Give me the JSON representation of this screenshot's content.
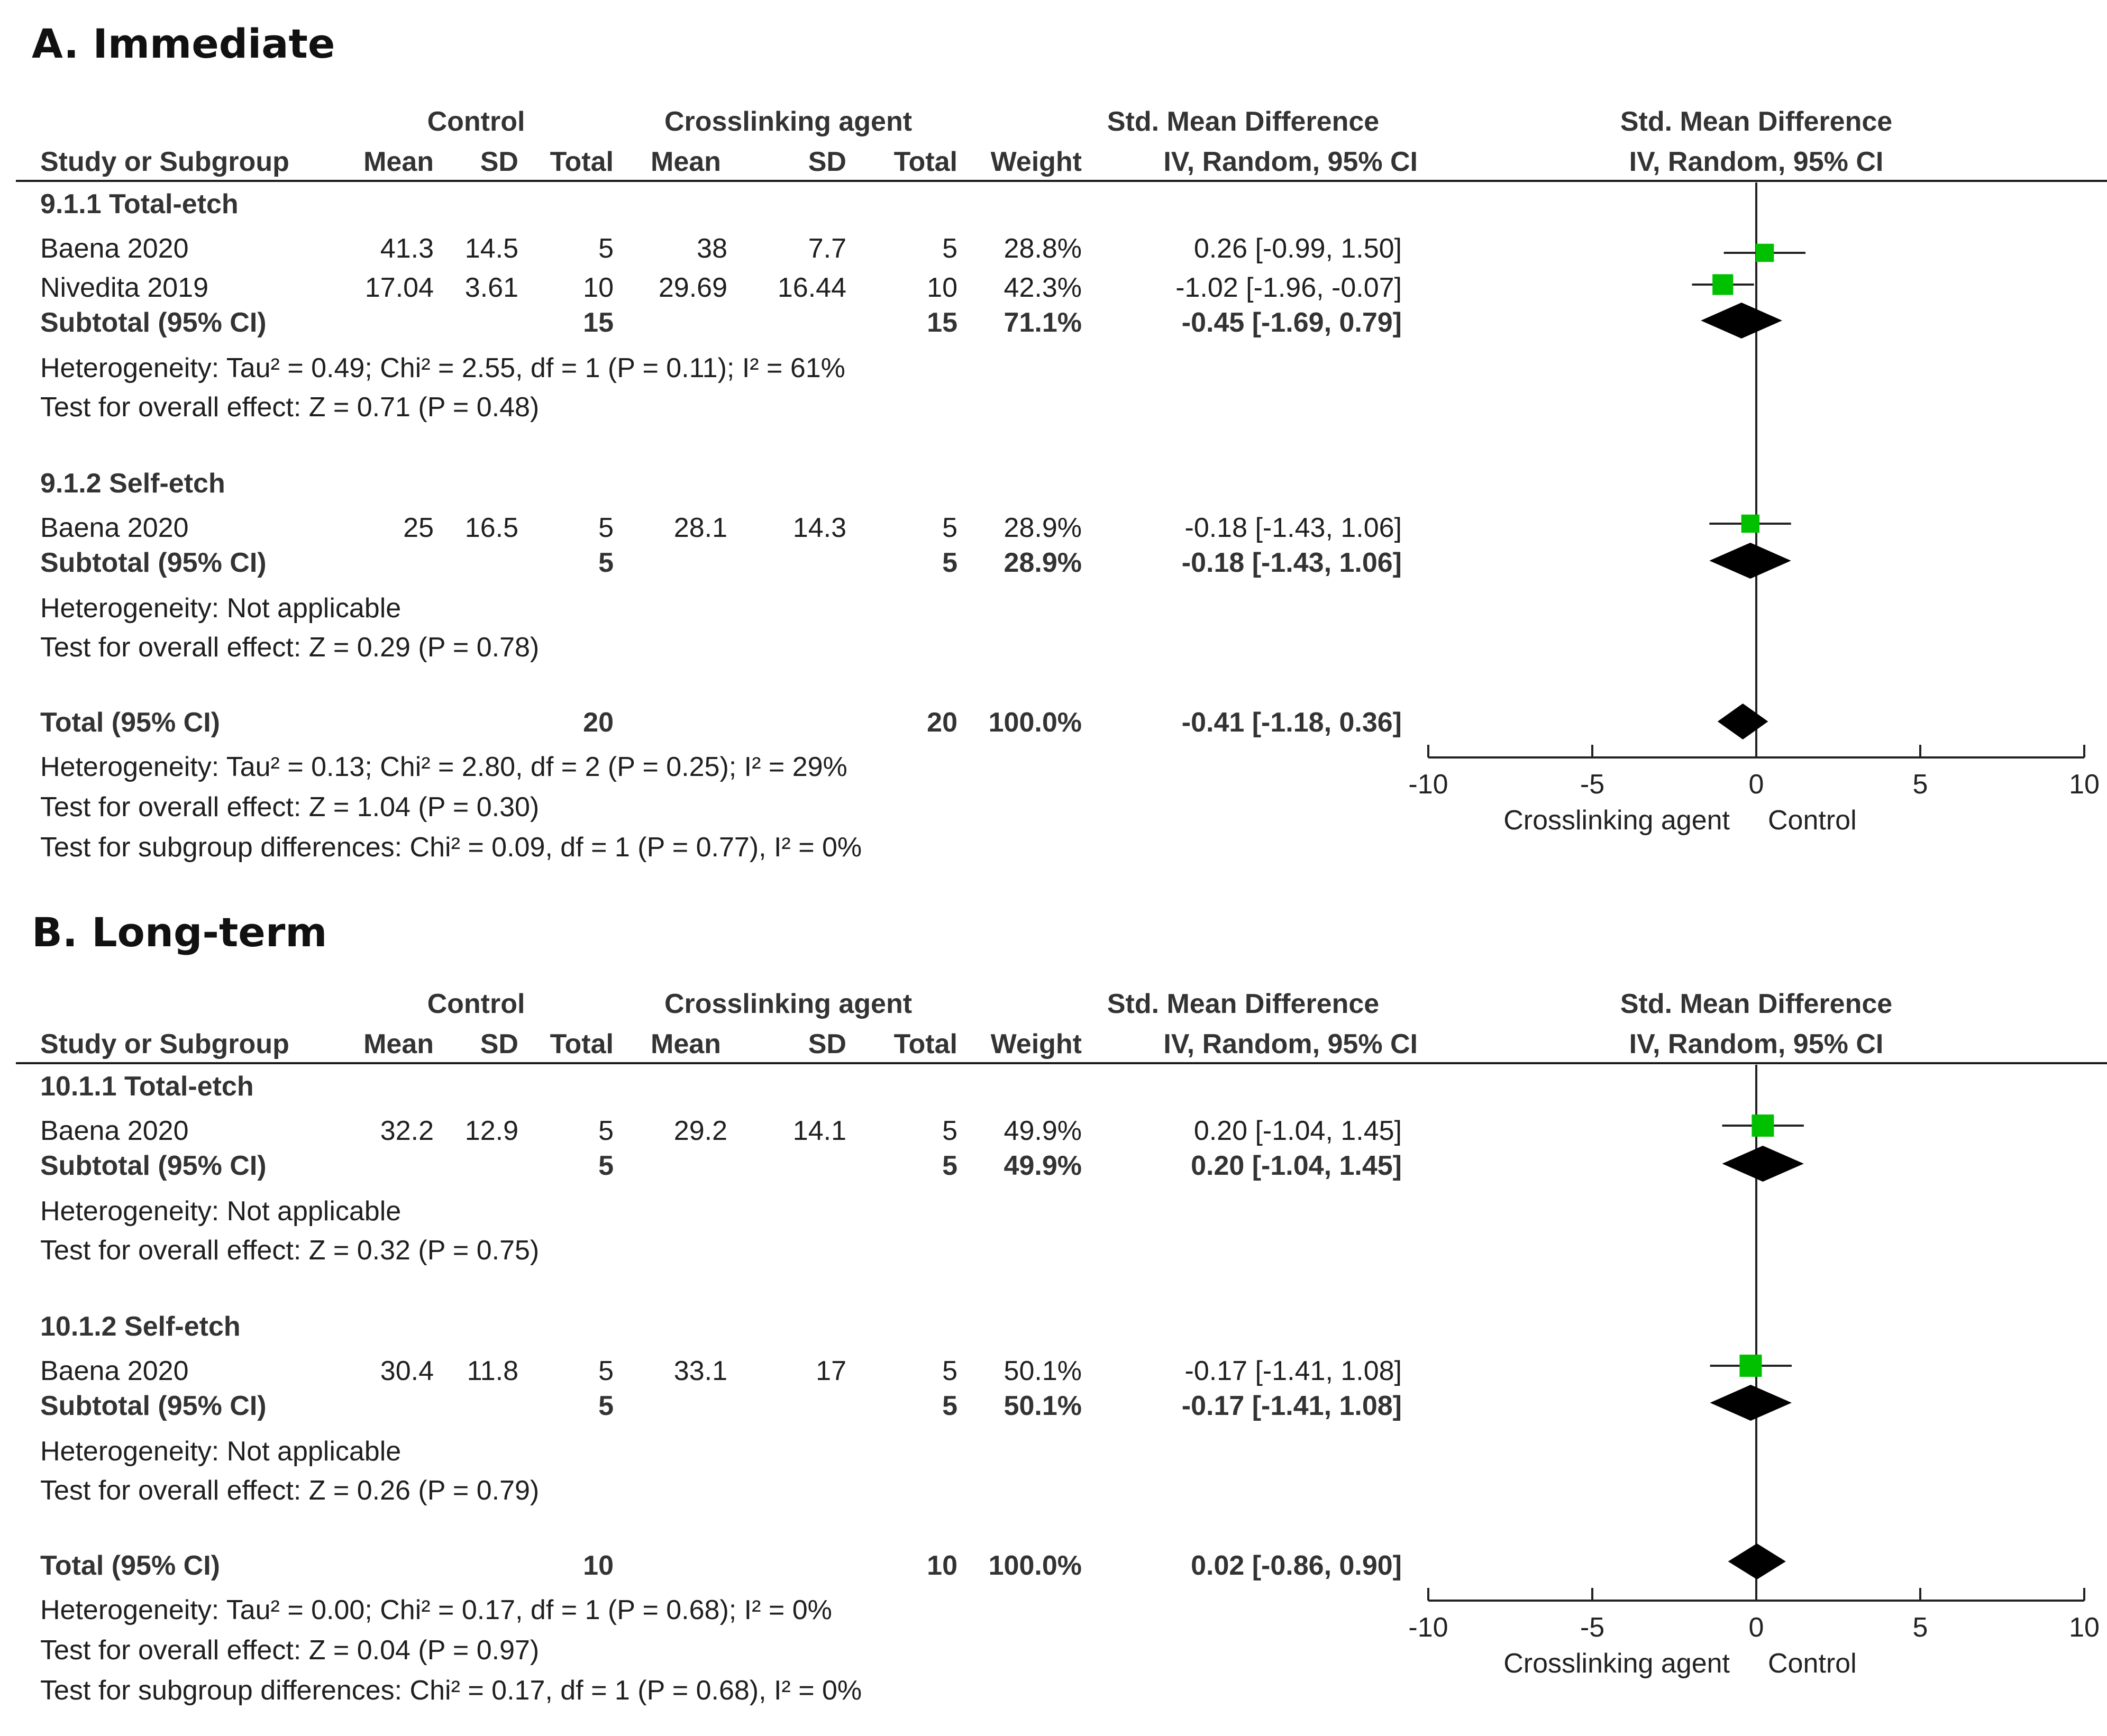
{
  "columns": {
    "study": "Study or Subgroup",
    "control": "Control",
    "treatment": "Crosslinking agent",
    "mean": "Mean",
    "sd": "SD",
    "total": "Total",
    "weight": "Weight",
    "smd_title": "Std. Mean Difference",
    "smd_method": "IV, Random, 95% CI"
  },
  "panels": [
    {
      "title": "A. Immediate",
      "subgroups": [
        {
          "name": "9.1.1 Total-etch",
          "studies": [
            {
              "name": "Baena 2020",
              "c_mean": "41.3",
              "c_sd": "14.5",
              "c_total": "5",
              "t_mean": "38",
              "t_sd": "7.7",
              "t_total": "5",
              "weight": "28.8%",
              "ci": "0.26 [-0.99, 1.50]"
            },
            {
              "name": "Nivedita 2019",
              "c_mean": "17.04",
              "c_sd": "3.61",
              "c_total": "10",
              "t_mean": "29.69",
              "t_sd": "16.44",
              "t_total": "10",
              "weight": "42.3%",
              "ci": "-1.02 [-1.96, -0.07]"
            }
          ],
          "subtotal": {
            "label": "Subtotal (95% CI)",
            "c_total": "15",
            "t_total": "15",
            "weight": "71.1%",
            "ci": "-0.45 [-1.69, 0.79]"
          },
          "heterogeneity": "Heterogeneity: Tau² = 0.49; Chi² = 2.55, df = 1 (P = 0.11); I² = 61%",
          "overall": "Test for overall effect: Z = 0.71 (P = 0.48)"
        },
        {
          "name": "9.1.2 Self-etch",
          "studies": [
            {
              "name": "Baena 2020",
              "c_mean": "25",
              "c_sd": "16.5",
              "c_total": "5",
              "t_mean": "28.1",
              "t_sd": "14.3",
              "t_total": "5",
              "weight": "28.9%",
              "ci": "-0.18 [-1.43, 1.06]"
            }
          ],
          "subtotal": {
            "label": "Subtotal (95% CI)",
            "c_total": "5",
            "t_total": "5",
            "weight": "28.9%",
            "ci": "-0.18 [-1.43, 1.06]"
          },
          "heterogeneity": "Heterogeneity: Not applicable",
          "overall": "Test for overall effect: Z = 0.29 (P = 0.78)"
        }
      ],
      "total": {
        "label": "Total (95% CI)",
        "c_total": "20",
        "t_total": "20",
        "weight": "100.0%",
        "ci": "-0.41 [-1.18, 0.36]"
      },
      "total_heterogeneity": "Heterogeneity: Tau² = 0.13; Chi² = 2.80, df = 2 (P = 0.25); I² = 29%",
      "total_overall": "Test for overall effect: Z = 1.04 (P = 0.30)",
      "subgroup_diff": "Test for subgroup differences: Chi² = 0.09, df = 1 (P = 0.77), I² = 0%"
    },
    {
      "title": "B. Long-term",
      "subgroups": [
        {
          "name": "10.1.1 Total-etch",
          "studies": [
            {
              "name": "Baena 2020",
              "c_mean": "32.2",
              "c_sd": "12.9",
              "c_total": "5",
              "t_mean": "29.2",
              "t_sd": "14.1",
              "t_total": "5",
              "weight": "49.9%",
              "ci": "0.20 [-1.04, 1.45]"
            }
          ],
          "subtotal": {
            "label": "Subtotal (95% CI)",
            "c_total": "5",
            "t_total": "5",
            "weight": "49.9%",
            "ci": "0.20 [-1.04, 1.45]"
          },
          "heterogeneity": "Heterogeneity: Not applicable",
          "overall": "Test for overall effect: Z = 0.32 (P = 0.75)"
        },
        {
          "name": "10.1.2 Self-etch",
          "studies": [
            {
              "name": "Baena 2020",
              "c_mean": "30.4",
              "c_sd": "11.8",
              "c_total": "5",
              "t_mean": "33.1",
              "t_sd": "17",
              "t_total": "5",
              "weight": "50.1%",
              "ci": "-0.17 [-1.41, 1.08]"
            }
          ],
          "subtotal": {
            "label": "Subtotal (95% CI)",
            "c_total": "5",
            "t_total": "5",
            "weight": "50.1%",
            "ci": "-0.17 [-1.41, 1.08]"
          },
          "heterogeneity": "Heterogeneity: Not applicable",
          "overall": "Test for overall effect: Z = 0.26 (P = 0.79)"
        }
      ],
      "total": {
        "label": "Total (95% CI)",
        "c_total": "10",
        "t_total": "10",
        "weight": "100.0%",
        "ci": "0.02 [-0.86, 0.90]"
      },
      "total_heterogeneity": "Heterogeneity: Tau² = 0.00; Chi² = 0.17, df = 1 (P = 0.68); I² = 0%",
      "total_overall": "Test for overall effect: Z = 0.04 (P = 0.97)",
      "subgroup_diff": "Test for subgroup differences: Chi² = 0.17, df = 1 (P = 0.68), I² = 0%"
    }
  ],
  "chart_data": [
    {
      "type": "forest",
      "title": "A. Immediate",
      "xlim": [
        -10,
        10
      ],
      "ticks": [
        "-10",
        "-5",
        "0",
        "5",
        "10"
      ],
      "label_left": "Crosslinking agent",
      "label_right": "Control",
      "studies": [
        {
          "label": "Baena 2020",
          "smd": 0.26,
          "lo": -0.99,
          "hi": 1.5,
          "weight": 28.8
        },
        {
          "label": "Nivedita 2019",
          "smd": -1.02,
          "lo": -1.96,
          "hi": -0.07,
          "weight": 42.3
        },
        {
          "label": "Baena 2020",
          "smd": -0.18,
          "lo": -1.43,
          "hi": 1.06,
          "weight": 28.9
        }
      ],
      "diamonds": [
        {
          "label": "Subtotal 9.1.1",
          "smd": -0.45,
          "lo": -1.69,
          "hi": 0.79
        },
        {
          "label": "Subtotal 9.1.2",
          "smd": -0.18,
          "lo": -1.43,
          "hi": 1.06
        },
        {
          "label": "Total",
          "smd": -0.41,
          "lo": -1.18,
          "hi": 0.36
        }
      ],
      "marker_color": "#00c000"
    },
    {
      "type": "forest",
      "title": "B. Long-term",
      "xlim": [
        -10,
        10
      ],
      "ticks": [
        "-10",
        "-5",
        "0",
        "5",
        "10"
      ],
      "label_left": "Crosslinking agent",
      "label_right": "Control",
      "studies": [
        {
          "label": "Baena 2020",
          "smd": 0.2,
          "lo": -1.04,
          "hi": 1.45,
          "weight": 49.9
        },
        {
          "label": "Baena 2020",
          "smd": -0.17,
          "lo": -1.41,
          "hi": 1.08,
          "weight": 50.1
        }
      ],
      "diamonds": [
        {
          "label": "Subtotal 10.1.1",
          "smd": 0.2,
          "lo": -1.04,
          "hi": 1.45
        },
        {
          "label": "Subtotal 10.1.2",
          "smd": -0.17,
          "lo": -1.41,
          "hi": 1.08
        },
        {
          "label": "Total",
          "smd": 0.02,
          "lo": -0.86,
          "hi": 0.9
        }
      ],
      "marker_color": "#00c000"
    }
  ]
}
